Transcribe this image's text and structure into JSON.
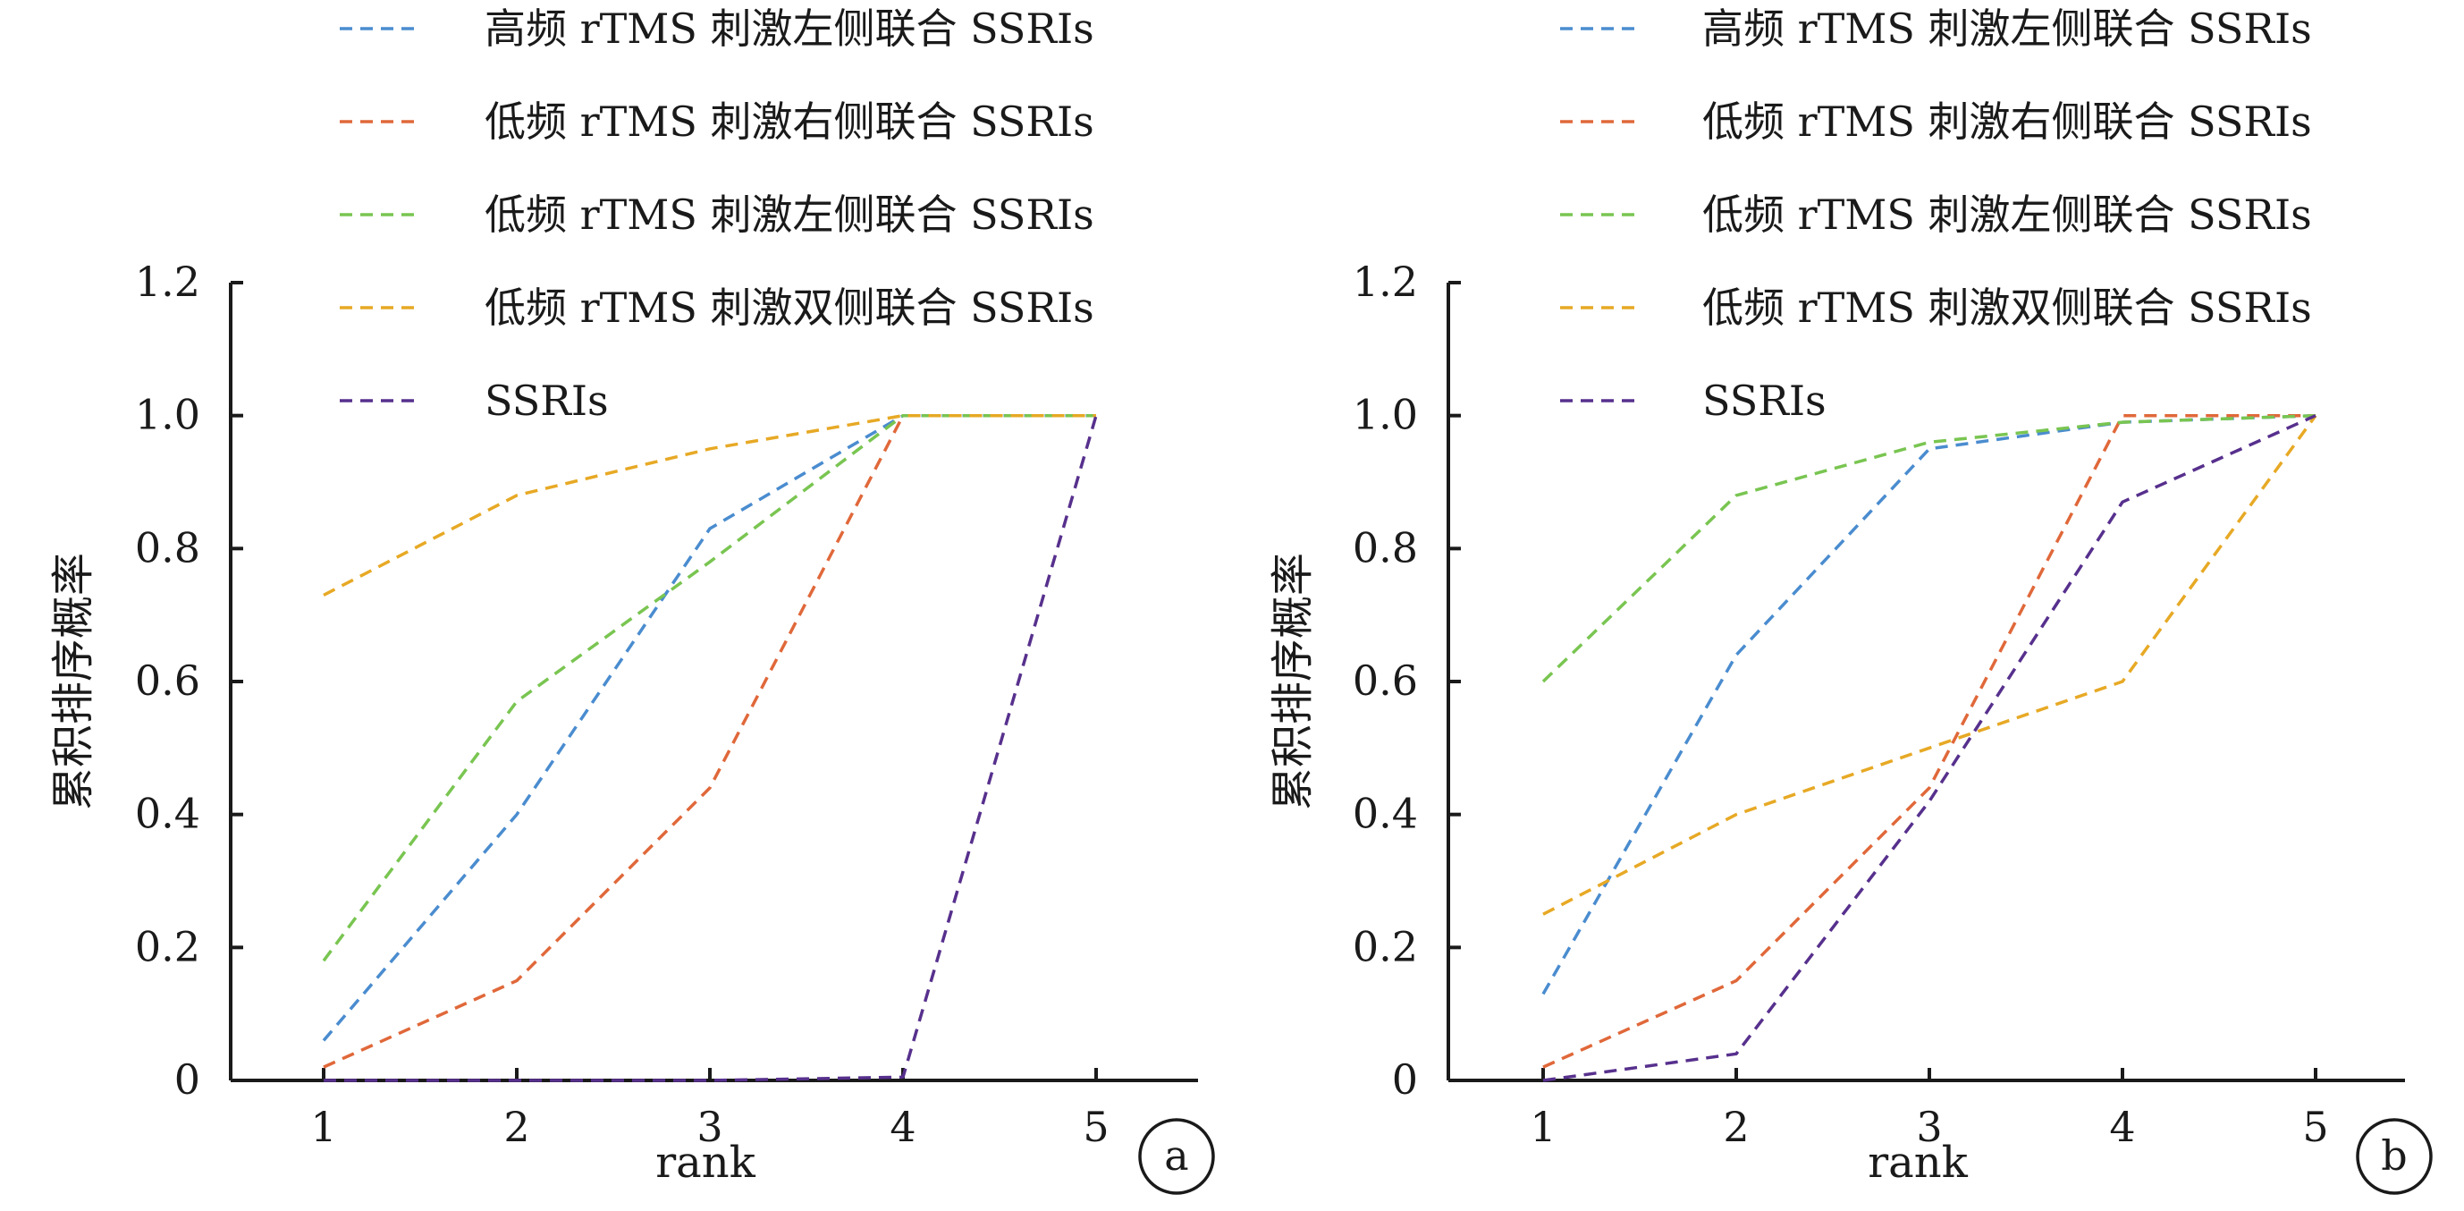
{
  "chart_data": [
    {
      "type": "line",
      "panel_label": "a",
      "xlabel": "rank",
      "ylabel": "累积排序概率",
      "x": [
        1,
        2,
        3,
        4,
        5
      ],
      "xticks": [
        "1",
        "2",
        "3",
        "4",
        "5"
      ],
      "yticks": [
        "0",
        "0.2",
        "0.4",
        "0.6",
        "0.8",
        "1.0",
        "1.2"
      ],
      "ylim": [
        0,
        1.2
      ],
      "xlim": [
        0.5,
        5.5
      ],
      "line_style": "dashed",
      "legend_position": "top",
      "series": [
        {
          "name": "高频 rTMS 刺激左侧联合 SSRIs",
          "color": "#4a8ccf",
          "values": [
            0.06,
            0.4,
            0.83,
            1.0,
            1.0
          ]
        },
        {
          "name": "低频 rTMS 刺激右侧联合 SSRIs",
          "color": "#e0683a",
          "values": [
            0.02,
            0.15,
            0.44,
            1.0,
            1.0
          ]
        },
        {
          "name": "低频 rTMS 刺激左侧联合 SSRIs",
          "color": "#79c551",
          "values": [
            0.18,
            0.57,
            0.78,
            1.0,
            1.0
          ]
        },
        {
          "name": "低频 rTMS 刺激双侧联合 SSRIs",
          "color": "#e7a925",
          "values": [
            0.73,
            0.88,
            0.95,
            1.0,
            1.0
          ]
        },
        {
          "name": "SSRIs",
          "color": "#57308d",
          "values": [
            0.0,
            0.0,
            0.0,
            0.005,
            1.0
          ]
        }
      ]
    },
    {
      "type": "line",
      "panel_label": "b",
      "xlabel": "rank",
      "ylabel": "累积排序概率",
      "x": [
        1,
        2,
        3,
        4,
        5
      ],
      "xticks": [
        "1",
        "2",
        "3",
        "4",
        "5"
      ],
      "yticks": [
        "0",
        "0.2",
        "0.4",
        "0.6",
        "0.8",
        "1.0",
        "1.2"
      ],
      "ylim": [
        0,
        1.2
      ],
      "xlim": [
        0.5,
        5.5
      ],
      "line_style": "dashed",
      "legend_position": "top",
      "series": [
        {
          "name": "高频 rTMS 刺激左侧联合 SSRIs",
          "color": "#4a8ccf",
          "values": [
            0.13,
            0.64,
            0.95,
            0.99,
            1.0
          ]
        },
        {
          "name": "低频 rTMS 刺激右侧联合 SSRIs",
          "color": "#e0683a",
          "values": [
            0.02,
            0.15,
            0.44,
            1.0,
            1.0
          ]
        },
        {
          "name": "低频 rTMS 刺激左侧联合 SSRIs",
          "color": "#79c551",
          "values": [
            0.6,
            0.88,
            0.96,
            0.99,
            1.0
          ]
        },
        {
          "name": "低频 rTMS 刺激双侧联合 SSRIs",
          "color": "#e7a925",
          "values": [
            0.25,
            0.4,
            0.5,
            0.6,
            1.0
          ]
        },
        {
          "name": "SSRIs",
          "color": "#57308d",
          "values": [
            0.0,
            0.04,
            0.42,
            0.87,
            1.0
          ]
        }
      ]
    }
  ]
}
